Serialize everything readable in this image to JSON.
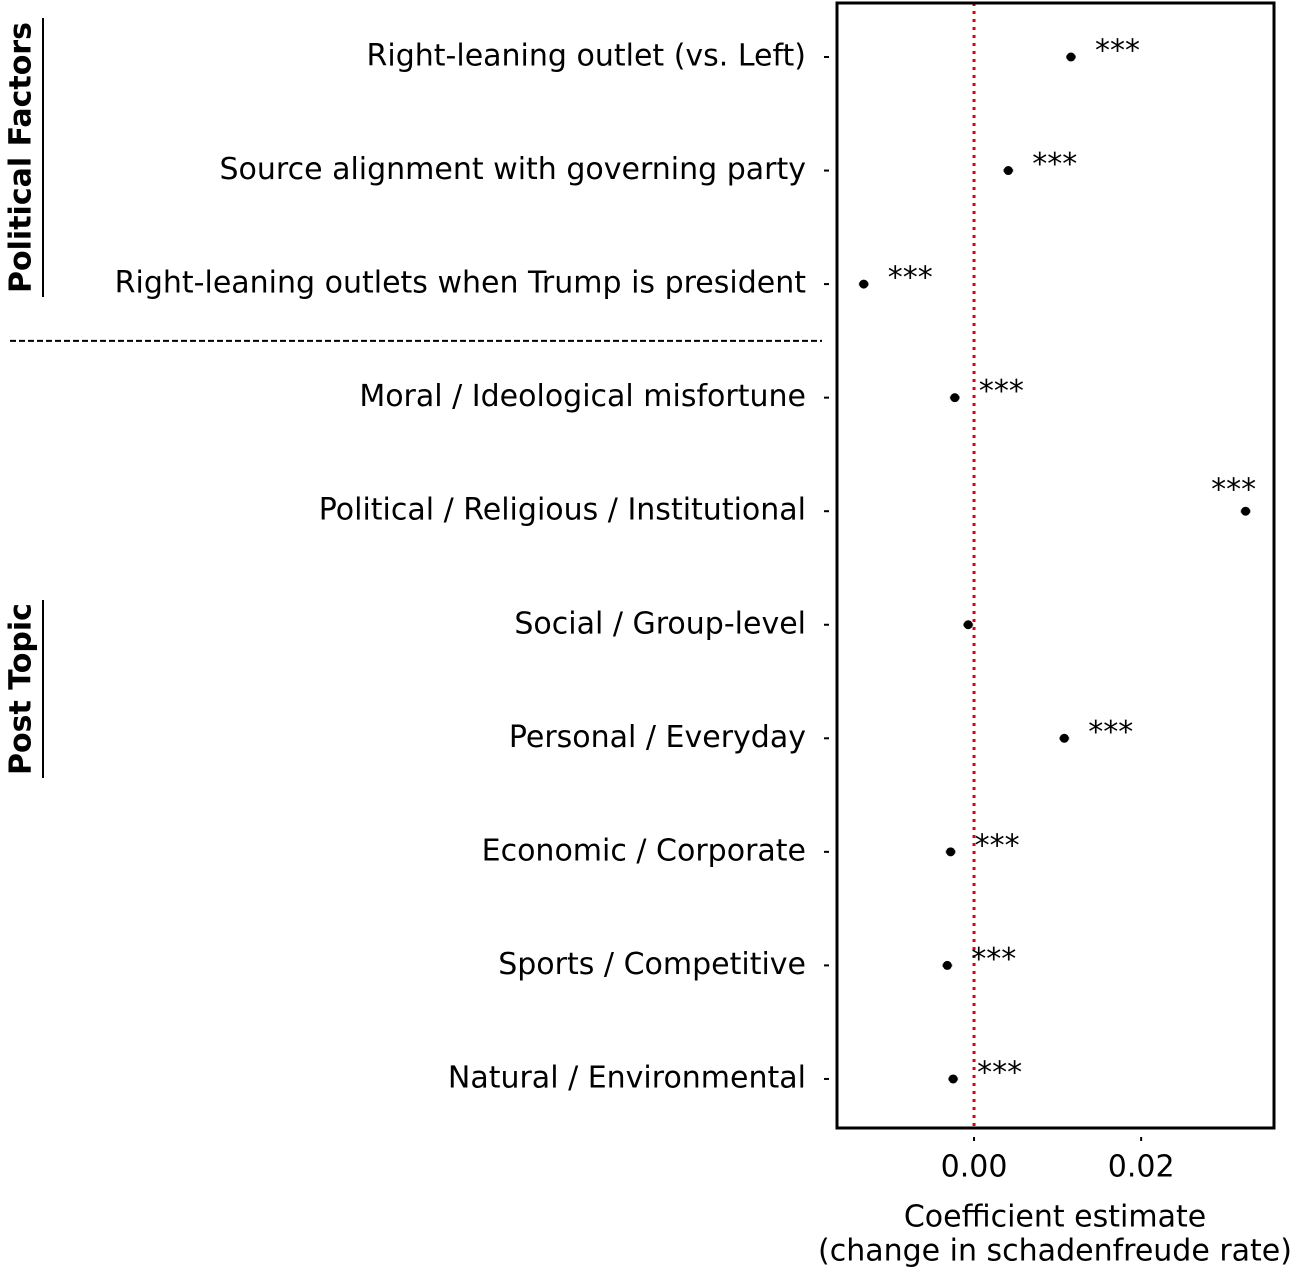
{
  "chart_data": {
    "type": "dot",
    "xlabel": [
      "Coefficient estimate",
      "(change in schadenfreude rate)"
    ],
    "xlim": [
      -0.0164,
      0.0359
    ],
    "xticks": [
      {
        "value": 0,
        "label": "0.00"
      },
      {
        "value": 0.02,
        "label": "0.02"
      }
    ],
    "reference_line": {
      "value": 0,
      "color": "#e00000"
    },
    "color": "#000000",
    "groups": [
      {
        "name": "Political Factors",
        "categories": [
          "Right-leaning outlet (vs. Left)",
          "Source alignment with governing party",
          "Right-leaning outlets when Trump is president"
        ],
        "values": [
          0.0116,
          0.0041,
          -0.0132
        ],
        "errors": [
          0.0006,
          0.0006,
          0.0006
        ],
        "significance": [
          "***",
          "***",
          "***"
        ]
      },
      {
        "name": "Post Topic",
        "categories": [
          "Moral / Ideological misfortune",
          "Political / Religious / Institutional",
          "Social / Group-level",
          "Personal / Everyday",
          "Economic / Corporate",
          "Sports / Competitive",
          "Natural / Environmental"
        ],
        "values": [
          -0.0023,
          0.0325,
          -0.0007,
          0.0108,
          -0.0028,
          -0.0032,
          -0.0025
        ],
        "errors": [
          0.0006,
          0.0006,
          0.0006,
          0.0006,
          0.0006,
          0.0006,
          0.0006
        ],
        "significance": [
          "***",
          "***",
          null,
          "***",
          "***",
          "***",
          "***"
        ]
      }
    ]
  }
}
